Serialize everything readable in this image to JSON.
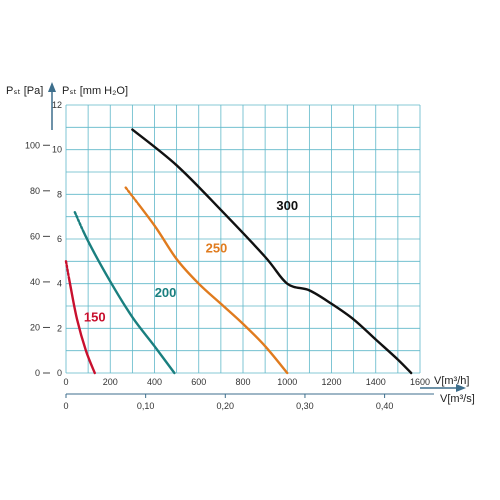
{
  "chart_data": {
    "type": "line",
    "y_axis_pa": {
      "label": "Pₛₜ [Pa]",
      "ticks": [
        0,
        20,
        40,
        60,
        80,
        100
      ]
    },
    "y_axis_mm": {
      "label": "Pₛₜ [mm H₂O]",
      "ticks": [
        0,
        2,
        4,
        6,
        8,
        10,
        12
      ]
    },
    "x_axis_m3h": {
      "label": "V[m³/h]",
      "ticks": [
        0,
        200,
        400,
        600,
        800,
        1000,
        1200,
        1400,
        1600
      ]
    },
    "x_axis_m3s": {
      "label": "V[m³/s]",
      "ticks": [
        "0",
        "0,10",
        "0,20",
        "0,30",
        "0,40"
      ],
      "tick_values": [
        0,
        0.1,
        0.2,
        0.3,
        0.4
      ]
    },
    "xlim": [
      0,
      1600
    ],
    "ylim_mm": [
      0,
      12
    ],
    "grid": true,
    "colors": {
      "grid": "#5fb7c9",
      "axis": "#3d6e8c"
    },
    "series": [
      {
        "name": "150",
        "color": "#c8102e",
        "dotted_start": true,
        "label_at": [
          130,
          2.3
        ],
        "points": [
          [
            0,
            5.0
          ],
          [
            20,
            3.9
          ],
          [
            50,
            2.4
          ],
          [
            90,
            1.0
          ],
          [
            130,
            0.0
          ]
        ]
      },
      {
        "name": "200",
        "color": "#1a7f7f",
        "dotted_start": true,
        "label_at": [
          450,
          3.4
        ],
        "points": [
          [
            40,
            7.2
          ],
          [
            100,
            5.9
          ],
          [
            200,
            4.1
          ],
          [
            300,
            2.5
          ],
          [
            400,
            1.2
          ],
          [
            490,
            0.0
          ]
        ]
      },
      {
        "name": "250",
        "color": "#e07b1e",
        "dotted_start": true,
        "label_at": [
          680,
          5.4
        ],
        "points": [
          [
            270,
            8.3
          ],
          [
            400,
            6.6
          ],
          [
            500,
            5.1
          ],
          [
            600,
            4.0
          ],
          [
            700,
            3.1
          ],
          [
            800,
            2.2
          ],
          [
            900,
            1.2
          ],
          [
            1000,
            0.0
          ]
        ]
      },
      {
        "name": "300",
        "color": "#111111",
        "dotted_start": false,
        "label_at": [
          1000,
          7.3
        ],
        "points": [
          [
            300,
            10.9
          ],
          [
            500,
            9.3
          ],
          [
            700,
            7.3
          ],
          [
            900,
            5.2
          ],
          [
            1000,
            4.0
          ],
          [
            1100,
            3.7
          ],
          [
            1200,
            3.1
          ],
          [
            1300,
            2.4
          ],
          [
            1400,
            1.5
          ],
          [
            1500,
            0.6
          ],
          [
            1560,
            0.0
          ]
        ]
      }
    ]
  }
}
